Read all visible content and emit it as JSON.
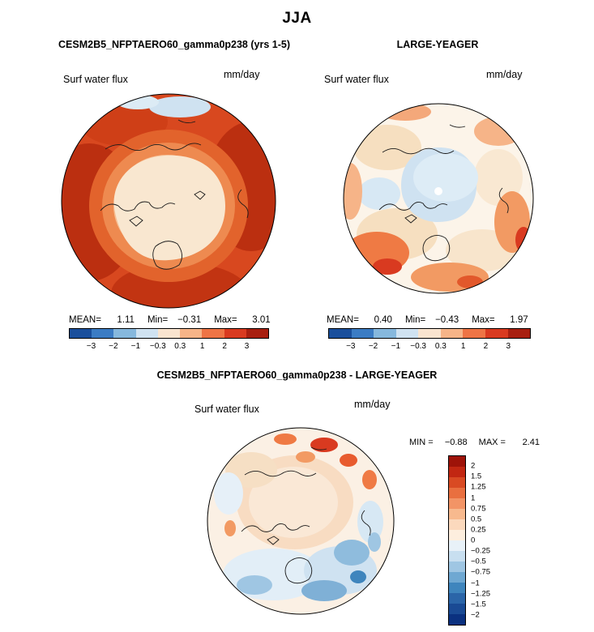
{
  "page": {
    "title": "JJA"
  },
  "panels": {
    "model": {
      "header": "CESM2B5_NFPTAERO60_gamma0p238 (yrs 1-5)",
      "field_label": "Surf water flux",
      "units": "mm/day",
      "stats": {
        "mean_label": "MEAN=",
        "mean": "1.11",
        "min_label": "Min=",
        "min": "−0.31",
        "max_label": "Max=",
        "max": "3.01"
      }
    },
    "obs": {
      "header": "LARGE-YEAGER",
      "field_label": "Surf water flux",
      "units": "mm/day",
      "stats": {
        "mean_label": "MEAN=",
        "mean": "0.40",
        "min_label": "Min=",
        "min": "−0.43",
        "max_label": "Max=",
        "max": "1.97"
      }
    },
    "diff": {
      "header": "CESM2B5_NFPTAERO60_gamma0p238 - LARGE-YEAGER",
      "field_label": "Surf water flux",
      "units": "mm/day",
      "stats": {
        "min_label": "MIN =",
        "min": "−0.88",
        "max_label": "MAX =",
        "max": "2.41"
      }
    }
  },
  "colorbars": {
    "horizontal": {
      "ticks": [
        "−3",
        "−2",
        "−1",
        "−0.3",
        "0.3",
        "1",
        "2",
        "3"
      ],
      "palette": [
        "#1a4f9c",
        "#3b7cc4",
        "#86b8dd",
        "#cfe2f1",
        "#f9e4cf",
        "#f6b488",
        "#ee7445",
        "#d93a20",
        "#a81f10"
      ]
    },
    "vertical": {
      "ticks": [
        "2",
        "1.5",
        "1.25",
        "1",
        "0.75",
        "0.5",
        "0.25",
        "0",
        "−0.25",
        "−0.5",
        "−0.75",
        "−1",
        "−1.25",
        "−1.5",
        "−2"
      ],
      "palette": [
        "#9e1309",
        "#c22712",
        "#d94a23",
        "#e96f3f",
        "#f29466",
        "#f7b98e",
        "#fbd9bd",
        "#fdeede",
        "#e8f1f8",
        "#c8dff0",
        "#9fc6e3",
        "#6fa8d2",
        "#3f85bd",
        "#2b65a8",
        "#1a4a94",
        "#0b3180"
      ]
    }
  },
  "chart_data": [
    {
      "type": "heatmap",
      "panel": "model",
      "title": "CESM2B5_NFPTAERO60_gamma0p238 (yrs 1-5)",
      "season": "JJA",
      "variable": "Surf water flux",
      "units": "mm/day",
      "projection": "north-polar",
      "stats": {
        "mean": 1.11,
        "min": -0.31,
        "max": 3.01
      },
      "contour_levels": [
        -3,
        -2,
        -1,
        -0.3,
        0.3,
        1,
        2,
        3
      ],
      "colormap": "blue-white-red",
      "legend_position": "bottom"
    },
    {
      "type": "heatmap",
      "panel": "observations",
      "title": "LARGE-YEAGER",
      "season": "JJA",
      "variable": "Surf water flux",
      "units": "mm/day",
      "projection": "north-polar",
      "stats": {
        "mean": 0.4,
        "min": -0.43,
        "max": 1.97
      },
      "contour_levels": [
        -3,
        -2,
        -1,
        -0.3,
        0.3,
        1,
        2,
        3
      ],
      "colormap": "blue-white-red",
      "legend_position": "bottom"
    },
    {
      "type": "heatmap",
      "panel": "difference",
      "title": "CESM2B5_NFPTAERO60_gamma0p238 - LARGE-YEAGER",
      "season": "JJA",
      "variable": "Surf water flux",
      "units": "mm/day",
      "projection": "north-polar",
      "stats": {
        "min": -0.88,
        "max": 2.41
      },
      "contour_levels": [
        -2,
        -1.5,
        -1.25,
        -1,
        -0.75,
        -0.5,
        -0.25,
        0,
        0.25,
        0.5,
        0.75,
        1,
        1.25,
        1.5,
        2
      ],
      "colormap": "blue-white-red",
      "legend_position": "right"
    }
  ]
}
